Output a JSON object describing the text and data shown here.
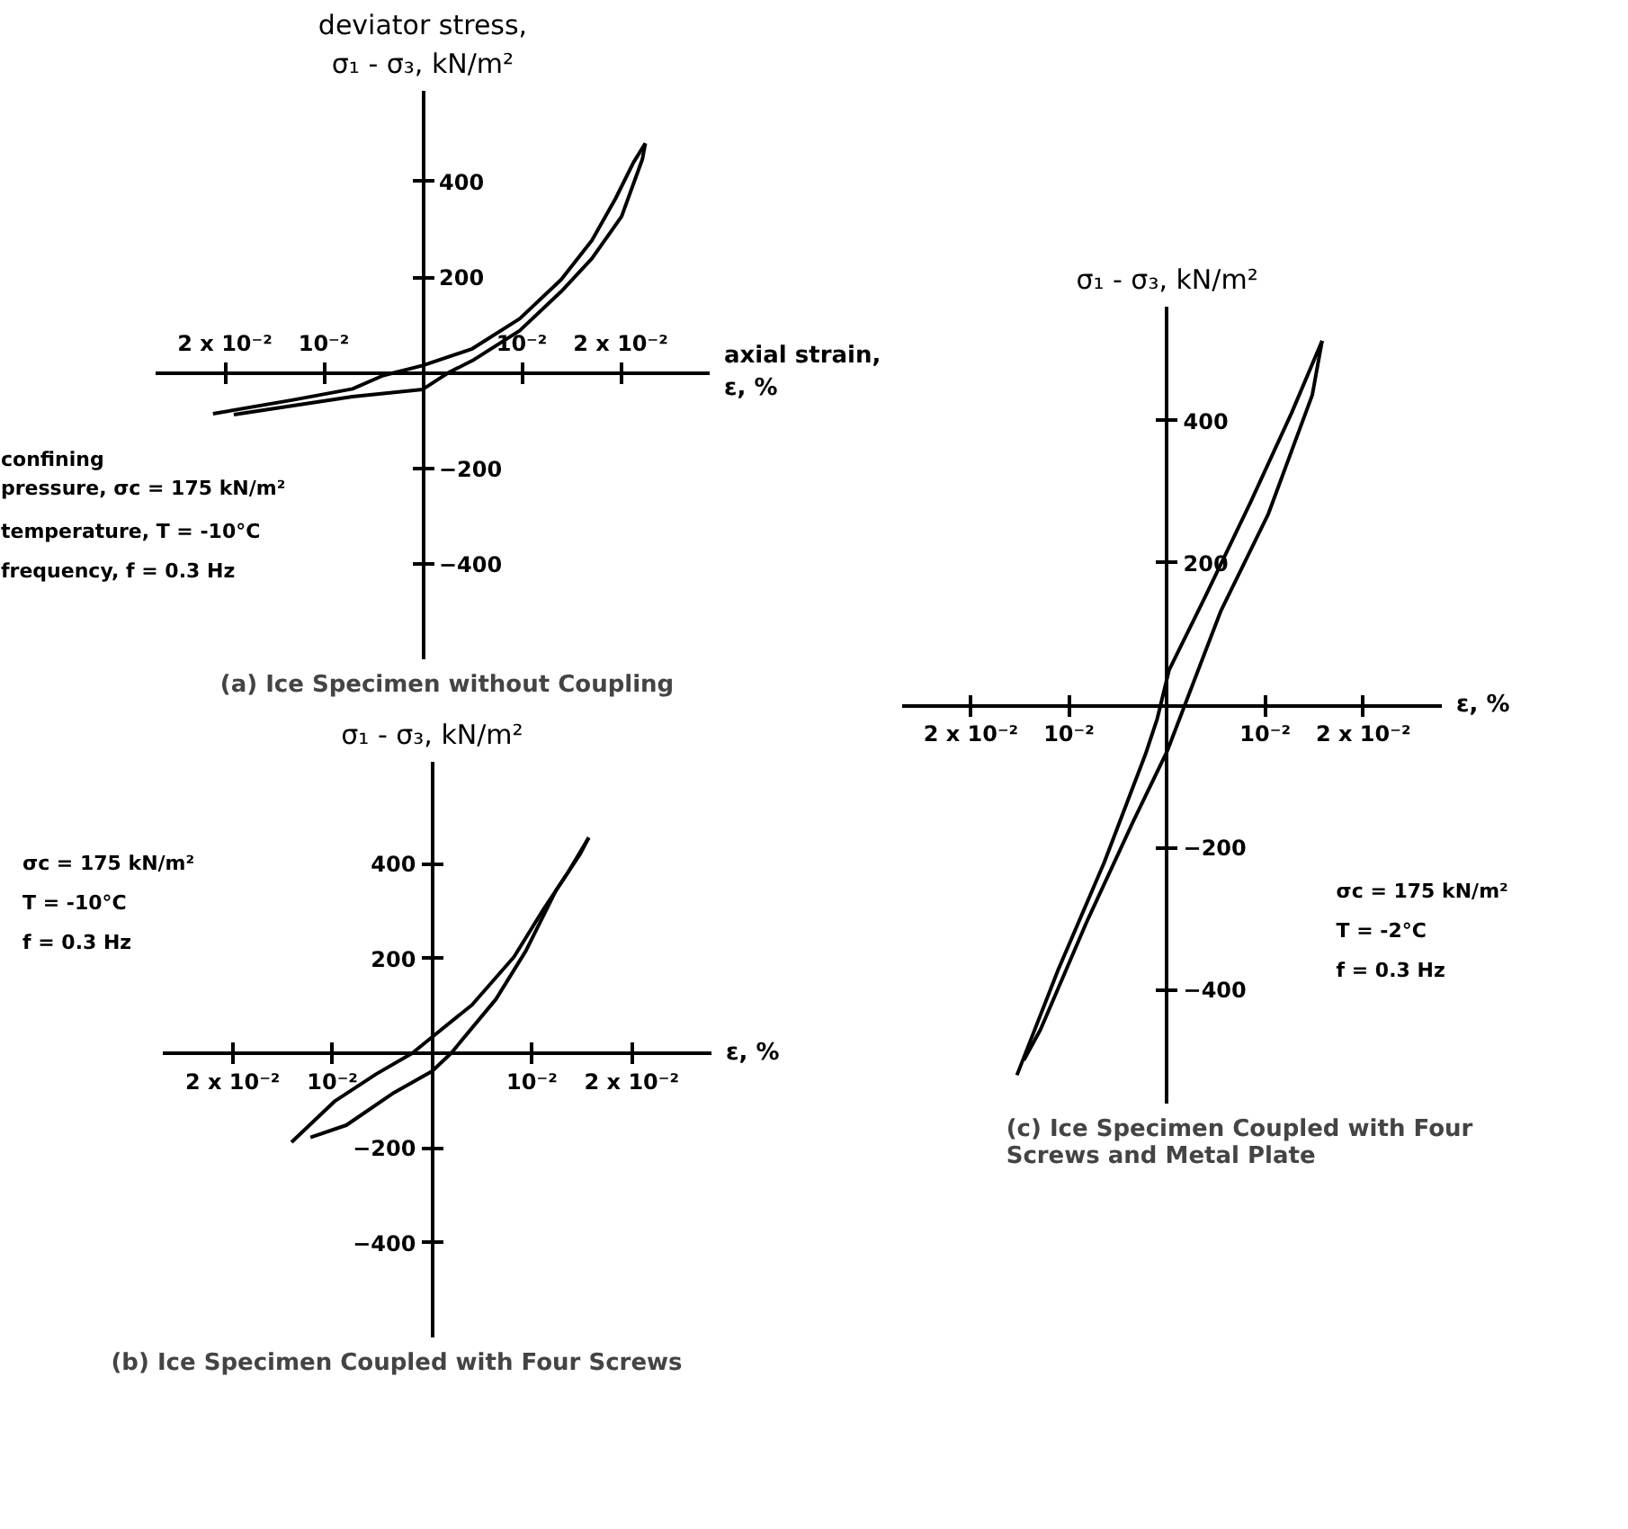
{
  "chart_data": [
    {
      "type": "line",
      "title": "(a) Ice Specimen without Coupling",
      "ylabel": "deviator stress,\nσ₁ - σ₃, kN/m²",
      "xlabel": "axial strain,\nε, %",
      "xlim": [
        -0.027,
        0.029
      ],
      "ylim": [
        -600,
        590
      ],
      "xticks": [
        {
          "value": -0.02,
          "label": "2 x 10⁻²"
        },
        {
          "value": -0.01,
          "label": "10⁻²"
        },
        {
          "value": 0.01,
          "label": "10⁻²"
        },
        {
          "value": 0.02,
          "label": "2 x 10⁻²"
        }
      ],
      "yticks": [
        -400,
        -200,
        200,
        400
      ],
      "annotations": [
        "confining\npressure, σc = 175 kN/m²",
        "temperature, T = -10°C",
        "frequency, f = 0.3 Hz"
      ],
      "series": [
        {
          "color": "#000000",
          "x": [
            -0.0212,
            -0.0131,
            -0.0071,
            -0.004,
            0,
            0.005,
            0.0098,
            0.014,
            0.0171,
            0.0195,
            0.0213,
            0.0225
          ],
          "values": [
            -86,
            -57,
            -34,
            -6,
            15,
            50,
            113,
            195,
            277,
            365,
            440,
            480
          ]
        },
        {
          "color": "#000000",
          "x": [
            0.0225,
            0.0222,
            0.0201,
            0.0171,
            0.014,
            0.0098,
            0.005,
            0.0026,
            0,
            -0.0071,
            -0.0131,
            -0.0191
          ],
          "values": [
            480,
            447,
            327,
            239,
            170,
            88,
            25,
            0,
            -35,
            -50,
            -69,
            -88
          ]
        }
      ]
    },
    {
      "type": "line",
      "title": "(b) Ice Specimen Coupled with Four Screws",
      "ylabel": "σ₁ - σ₃, kN/m²",
      "xlabel": "ε, %",
      "xlim": [
        -0.027,
        0.028
      ],
      "ylim": [
        -600,
        615
      ],
      "xticks": [
        {
          "value": -0.02,
          "label": "2 x 10⁻²"
        },
        {
          "value": -0.01,
          "label": "10⁻²"
        },
        {
          "value": 0.01,
          "label": "10⁻²"
        },
        {
          "value": 0.02,
          "label": "2 x 10⁻²"
        }
      ],
      "yticks": [
        -400,
        -200,
        200,
        400
      ],
      "annotations": [
        "σc = 175 kN/m²",
        "T = -10°C",
        "f = 0.3 Hz"
      ],
      "series": [
        {
          "color": "#000000",
          "x": [
            -0.0141,
            -0.0098,
            -0.0056,
            -0.002,
            0,
            0.004,
            0.0082,
            0.0112,
            0.0136,
            0.0157
          ],
          "values": [
            -188,
            -102,
            -44,
            0,
            34,
            102,
            203,
            305,
            381,
            455
          ]
        },
        {
          "color": "#000000",
          "x": [
            0.0157,
            0.0148,
            0.0124,
            0.0094,
            0.0064,
            0.0019,
            0,
            -0.0038,
            -0.0086,
            -0.0122
          ],
          "values": [
            455,
            419,
            343,
            216,
            114,
            0,
            -38,
            -83,
            -152,
            -178
          ]
        }
      ]
    },
    {
      "type": "line",
      "title": "(c) Ice Specimen Coupled with Four\nScrews and Metal Plate",
      "ylabel": "σ₁ - σ₃, kN/m²",
      "xlabel": "ε, %",
      "xlim": [
        -0.027,
        0.028
      ],
      "ylim": [
        -560,
        560
      ],
      "xticks": [
        {
          "value": -0.02,
          "label": "2 x 10⁻²"
        },
        {
          "value": -0.01,
          "label": "10⁻²"
        },
        {
          "value": 0.01,
          "label": "10⁻²"
        },
        {
          "value": 0.02,
          "label": "2 x 10⁻²"
        }
      ],
      "yticks": [
        -400,
        -200,
        200,
        400
      ],
      "annotations": [
        "σc = 175 kN/m²",
        "T = -2°C",
        "f = 0.3 Hz"
      ],
      "series": [
        {
          "color": "#000000",
          "x": [
            -0.0153,
            -0.0111,
            -0.0064,
            -0.0022,
            -0.001,
            0.0002,
            0.0038,
            0.0085,
            0.0127,
            0.0158
          ],
          "values": [
            -520,
            -372,
            -221,
            -69,
            -19,
            49,
            150,
            285,
            411,
            512
          ]
        },
        {
          "color": "#000000",
          "x": [
            0.0158,
            0.0148,
            0.0103,
            0.0055,
            0.002,
            0,
            -0.0034,
            -0.0082,
            -0.0129,
            -0.0146
          ],
          "values": [
            512,
            436,
            268,
            133,
            7,
            -65,
            -162,
            -305,
            -456,
            -499
          ]
        }
      ]
    }
  ]
}
